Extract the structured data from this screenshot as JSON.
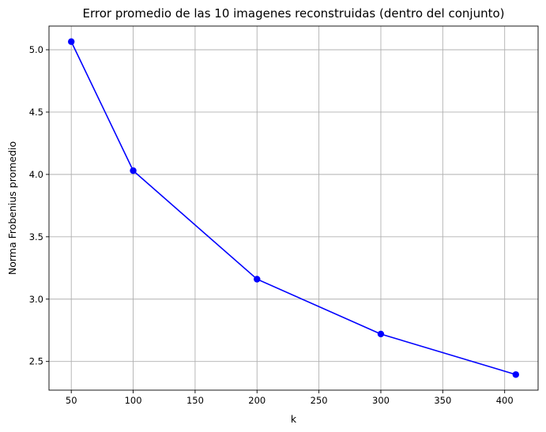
{
  "chart_data": {
    "type": "line",
    "title": "Error promedio de las 10 imagenes reconstruidas (dentro del conjunto)",
    "xlabel": "k",
    "ylabel": "Norma Frobenius promedio",
    "x": [
      50,
      100,
      200,
      300,
      409
    ],
    "series": [
      {
        "values": [
          5.065,
          4.03,
          3.16,
          2.72,
          2.395
        ]
      }
    ],
    "xlim": [
      32,
      427
    ],
    "ylim": [
      2.27,
      5.19
    ],
    "xticks": [
      50,
      100,
      150,
      200,
      250,
      300,
      350,
      400
    ],
    "yticks": [
      2.5,
      3.0,
      3.5,
      4.0,
      4.5,
      5.0
    ],
    "grid": true,
    "marker": "circle",
    "color": "#0000ff"
  }
}
